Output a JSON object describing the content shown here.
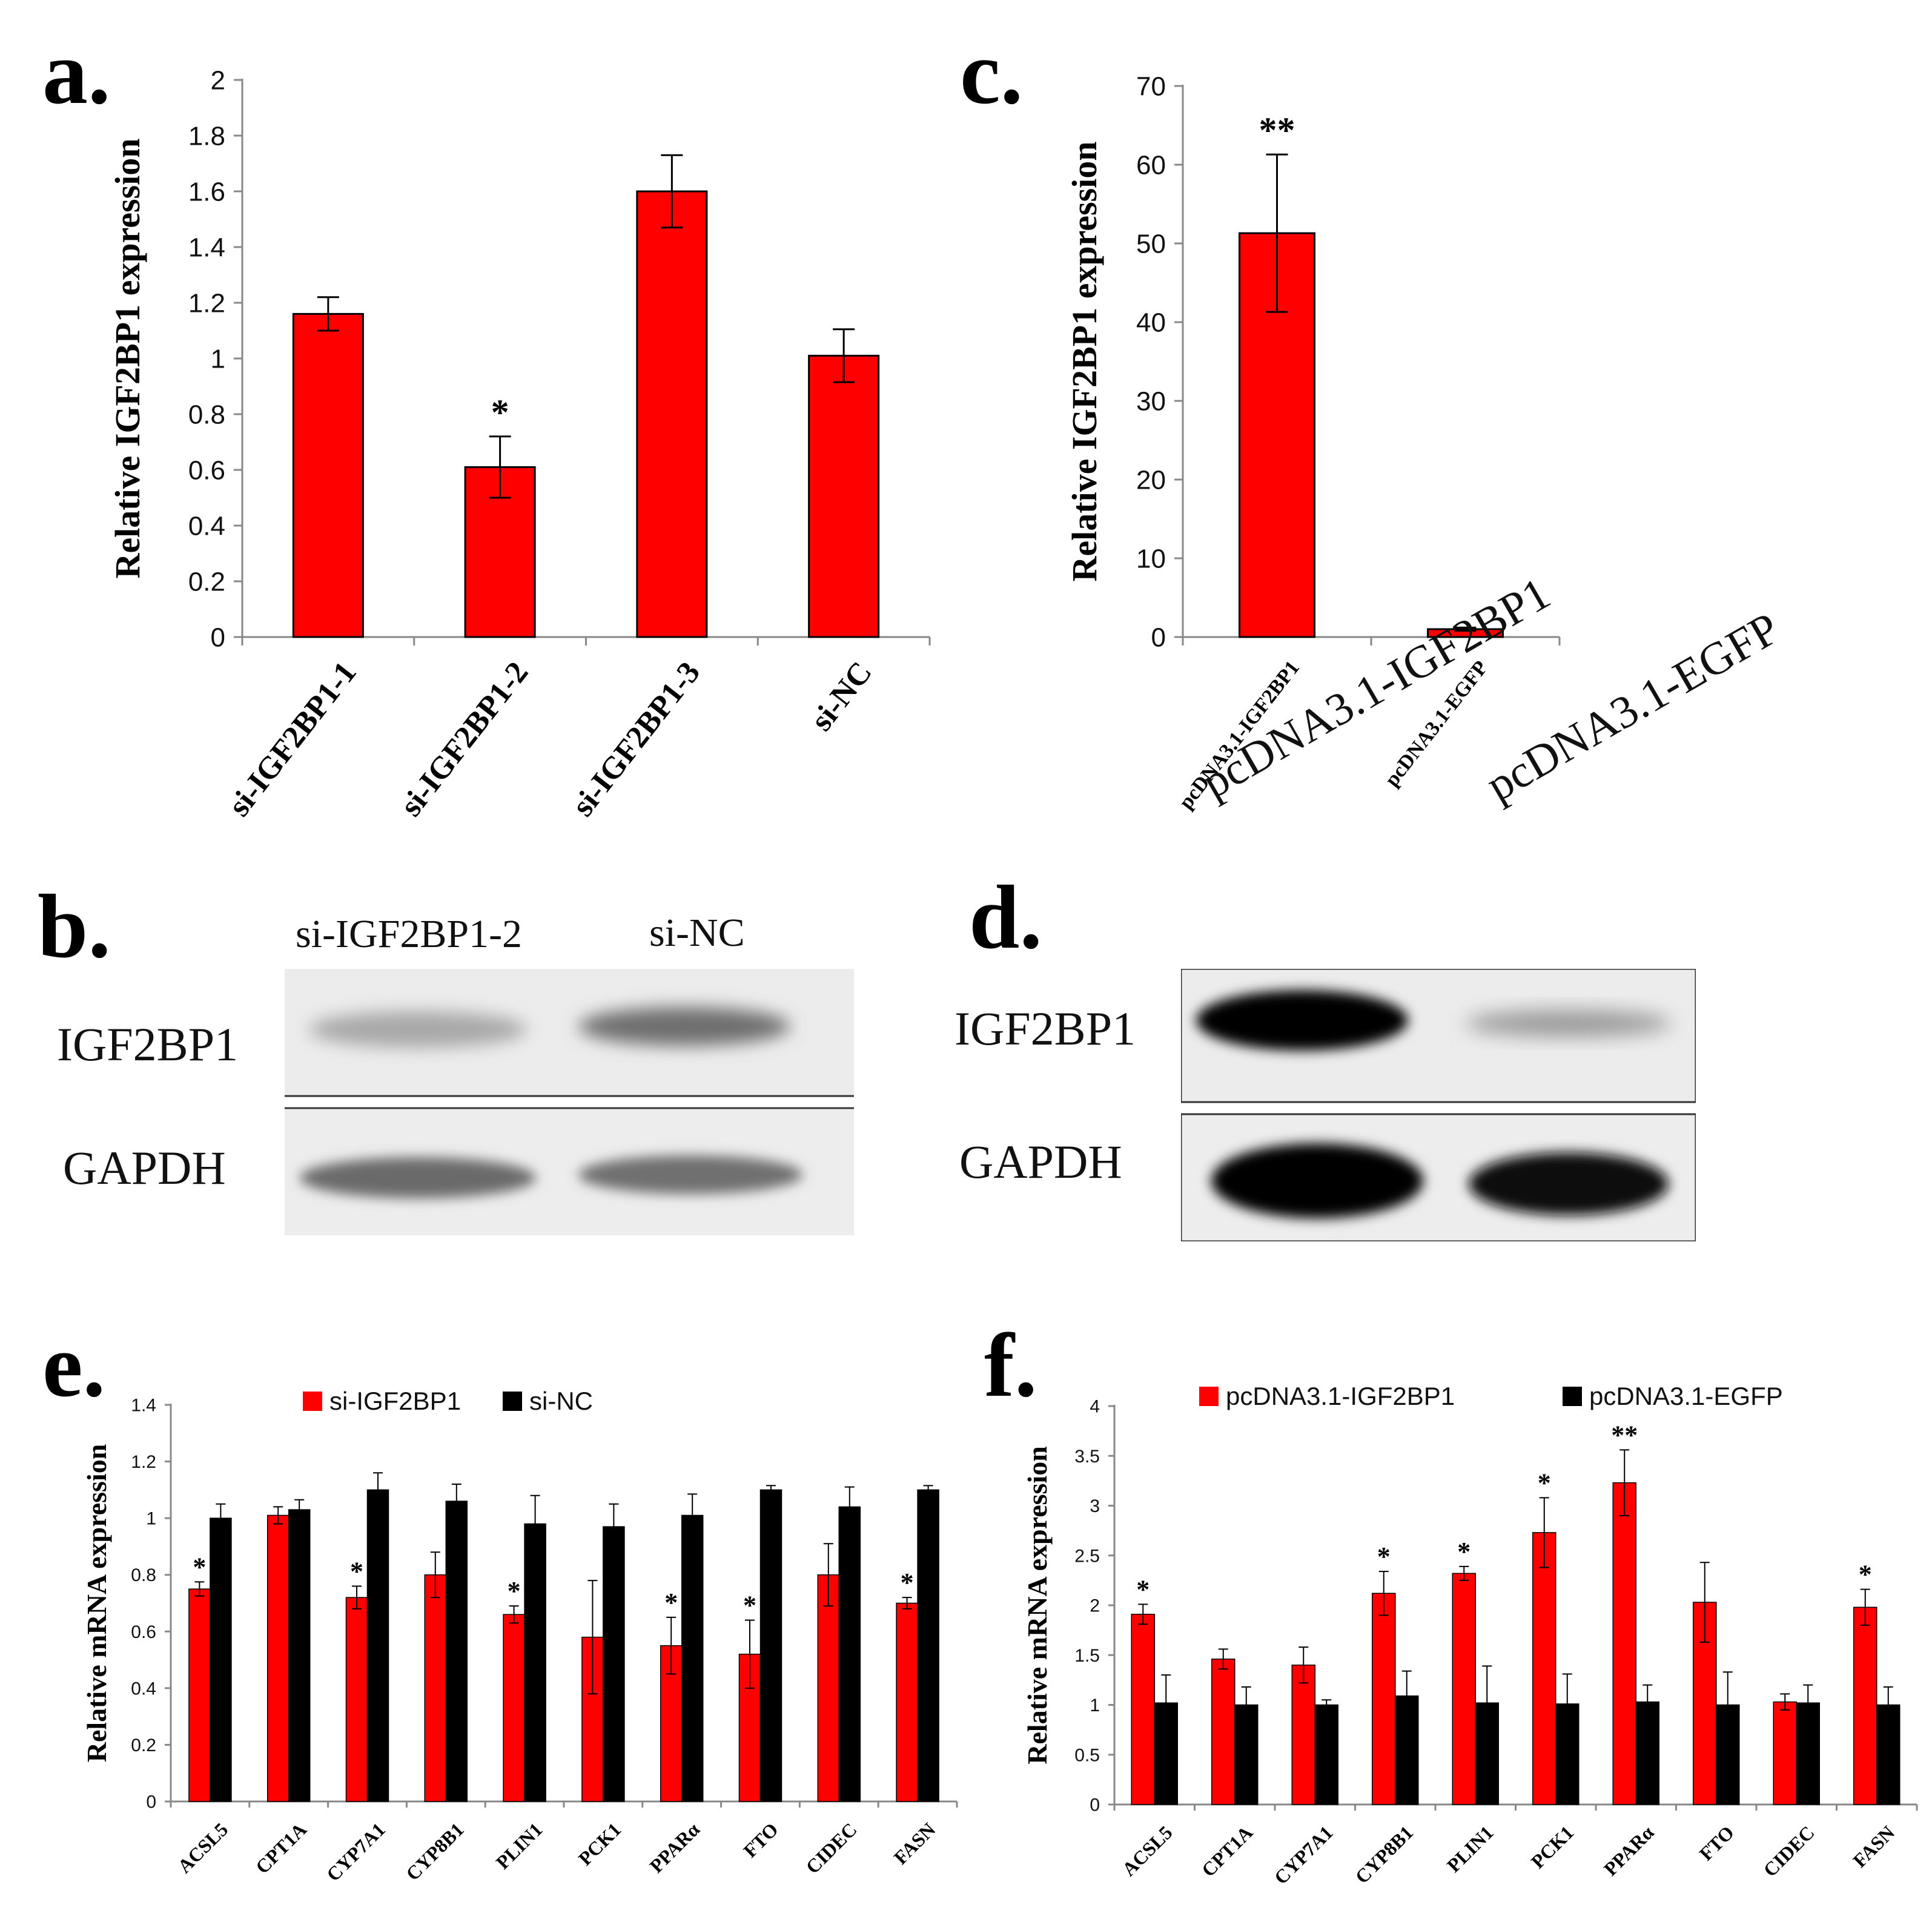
{
  "panels": {
    "a": "a.",
    "b": "b.",
    "c": "c.",
    "d": "d.",
    "e": "e.",
    "f": "f."
  },
  "blot_b": {
    "lanes": [
      "si-IGF2BP1-2",
      "si-NC"
    ],
    "rows": [
      "IGF2BP1",
      "GAPDH"
    ]
  },
  "blot_d": {
    "lanes": [
      "pcDNA3.1-IGF2BP1",
      "pcDNA3.1-EGFP"
    ],
    "rows": [
      "IGF2BP1",
      "GAPDH"
    ]
  },
  "colors": {
    "red": "#ff0000",
    "black": "#000000"
  },
  "chart_data": [
    {
      "id": "a",
      "type": "bar",
      "ylabel": "Relative IGF2BP1 expression",
      "ylim": [
        0,
        2
      ],
      "yticks": [
        "0",
        "0.2",
        "0.4",
        "0.6",
        "0.8",
        "1",
        "1.2",
        "1.4",
        "1.6",
        "1.8",
        "2"
      ],
      "categories": [
        "si-IGF2BP1-1",
        "si-IGF2BP1-2",
        "si-IGF2BP1-3",
        "si-NC"
      ],
      "series": [
        {
          "values": [
            1.16,
            0.61,
            1.6,
            1.01
          ],
          "errors": [
            0.06,
            0.11,
            0.13,
            0.095
          ],
          "sig": [
            "",
            "*",
            "",
            ""
          ],
          "color": "#ff0000"
        }
      ]
    },
    {
      "id": "c",
      "type": "bar",
      "ylabel": "Relative IGF2BP1 expression",
      "ylim": [
        0,
        70
      ],
      "yticks": [
        "0",
        "10",
        "20",
        "30",
        "40",
        "50",
        "60",
        "70"
      ],
      "categories": [
        "pcDNA3.1-IGF2BP1",
        "pcDNA3.1-EGFP"
      ],
      "series": [
        {
          "values": [
            51.3,
            1.0
          ],
          "errors": [
            10.0,
            0.2
          ],
          "sig": [
            "**",
            ""
          ],
          "color": "#ff0000"
        }
      ]
    },
    {
      "id": "e",
      "type": "bar",
      "ylabel": "Relative mRNA expression",
      "ylim": [
        0,
        1.4
      ],
      "yticks": [
        "0",
        "0.2",
        "0.4",
        "0.6",
        "0.8",
        "1",
        "1.2",
        "1.4"
      ],
      "categories": [
        "ACSL5",
        "CPT1A",
        "CYP7A1",
        "CYP8B1",
        "PLIN1",
        "PCK1",
        "PPARα",
        "FTO",
        "CIDEC",
        "FASN"
      ],
      "series": [
        {
          "name": "si-IGF2BP1",
          "color": "#ff0000",
          "values": [
            0.75,
            1.01,
            0.72,
            0.8,
            0.66,
            0.58,
            0.55,
            0.52,
            0.8,
            0.7
          ],
          "errors": [
            0.025,
            0.03,
            0.04,
            0.08,
            0.03,
            0.2,
            0.1,
            0.12,
            0.11,
            0.02
          ],
          "sig": [
            "*",
            "",
            "*",
            "",
            "*",
            "",
            "*",
            "*",
            "",
            "*"
          ]
        },
        {
          "name": "si-NC",
          "color": "#000000",
          "values": [
            1.0,
            1.03,
            1.1,
            1.06,
            0.98,
            0.97,
            1.01,
            1.1,
            1.04,
            1.1
          ],
          "errors": [
            0.05,
            0.035,
            0.06,
            0.06,
            0.1,
            0.08,
            0.075,
            0.015,
            0.07,
            0.015
          ],
          "sig": [
            "",
            "",
            "",
            "",
            "",
            "",
            "",
            "",
            "",
            ""
          ]
        }
      ],
      "legend": "top"
    },
    {
      "id": "f",
      "type": "bar",
      "ylabel": "Relative mRNA expression",
      "ylim": [
        0,
        4
      ],
      "yticks": [
        "0",
        "0.5",
        "1",
        "1.5",
        "2",
        "2.5",
        "3",
        "3.5",
        "4"
      ],
      "categories": [
        "ACSL5",
        "CPT1A",
        "CYP7A1",
        "CYP8B1",
        "PLIN1",
        "PCK1",
        "PPARα",
        "FTO",
        "CIDEC",
        "FASN"
      ],
      "series": [
        {
          "name": "pcDNA3.1-IGF2BP1",
          "color": "#ff0000",
          "values": [
            1.91,
            1.46,
            1.4,
            2.12,
            2.32,
            2.73,
            3.23,
            2.03,
            1.03,
            1.98
          ],
          "errors": [
            0.1,
            0.1,
            0.18,
            0.22,
            0.07,
            0.35,
            0.33,
            0.4,
            0.08,
            0.18
          ],
          "sig": [
            "*",
            "",
            "",
            "*",
            "*",
            "*",
            "**",
            "",
            "",
            "*"
          ]
        },
        {
          "name": "pcDNA3.1-EGFP",
          "color": "#000000",
          "values": [
            1.02,
            1.0,
            1.0,
            1.09,
            1.02,
            1.01,
            1.03,
            1.0,
            1.02,
            1.0
          ],
          "errors": [
            0.28,
            0.18,
            0.05,
            0.25,
            0.37,
            0.3,
            0.17,
            0.33,
            0.18,
            0.18
          ],
          "sig": [
            "",
            "",
            "",
            "",
            "",
            "",
            "",
            "",
            "",
            ""
          ]
        }
      ],
      "legend": "top"
    }
  ]
}
